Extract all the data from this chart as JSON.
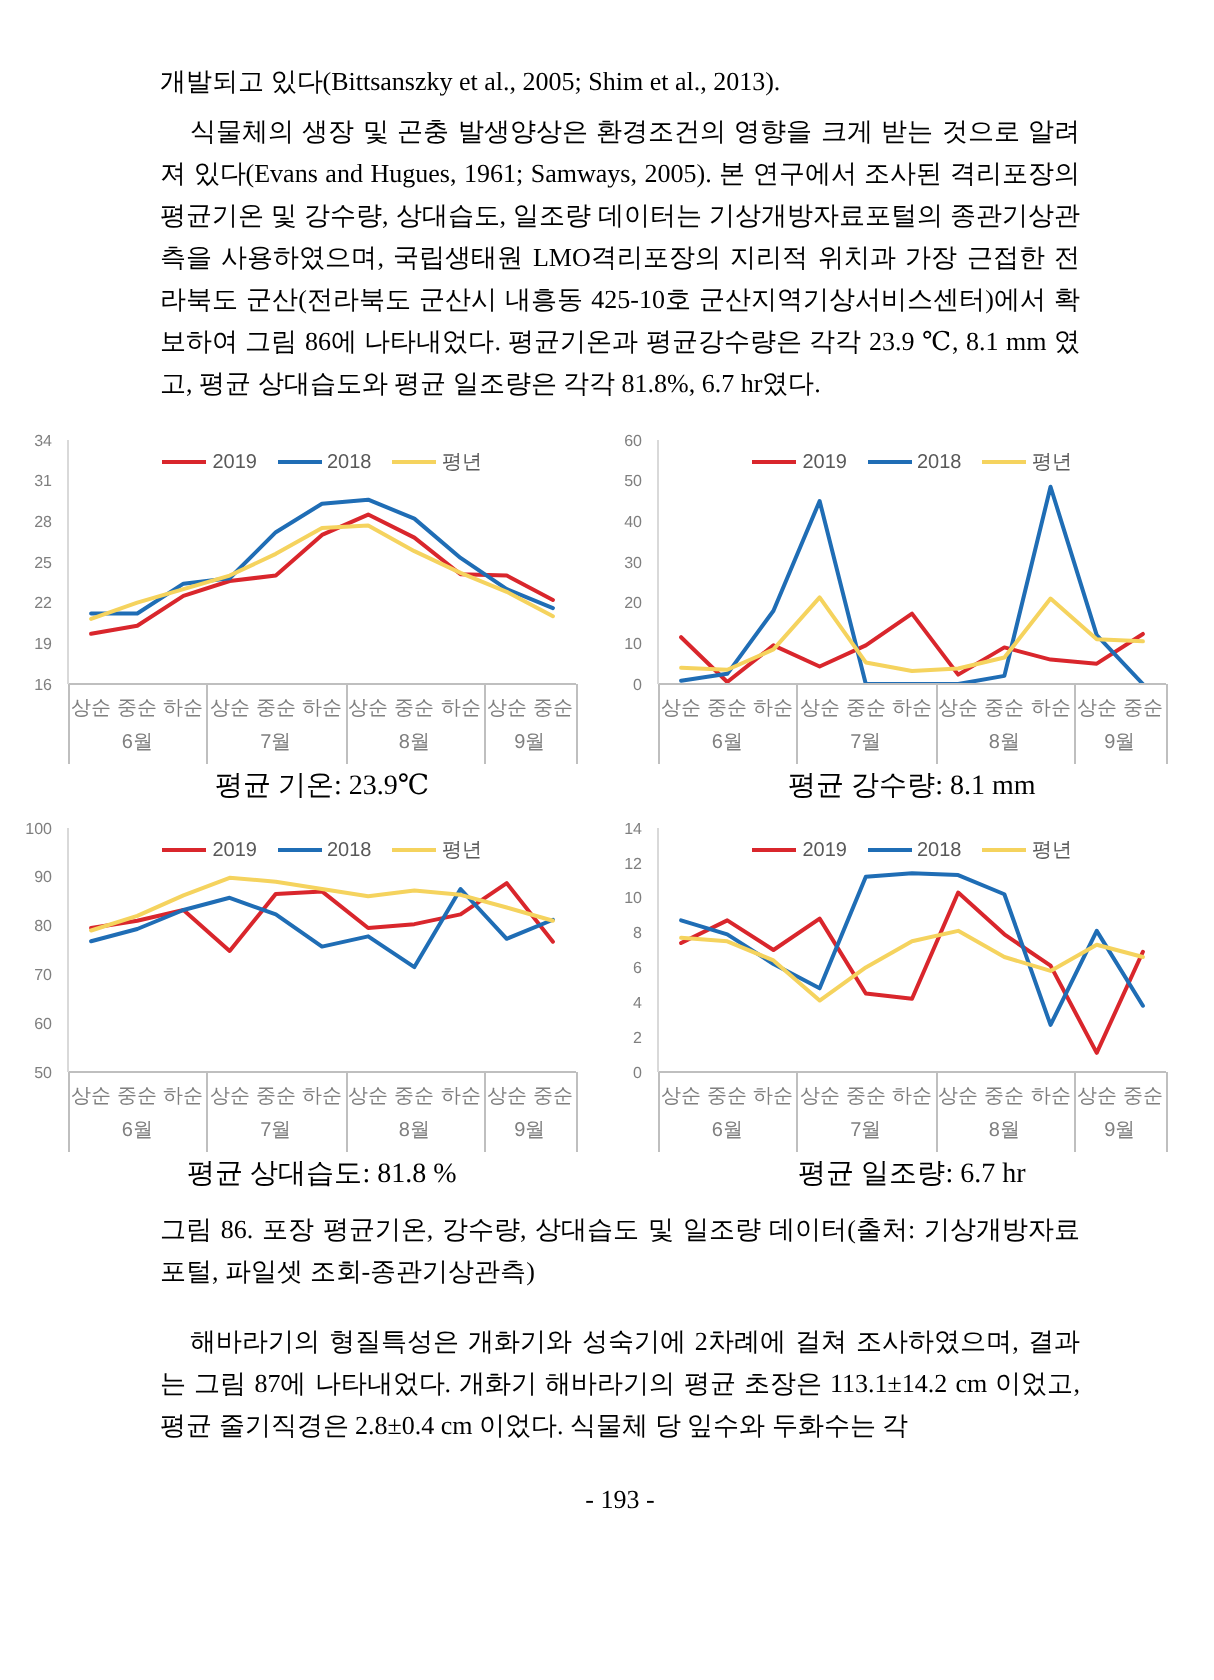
{
  "chart_data": [
    {
      "type": "line",
      "xlabel": "평균 기온: 23.9℃",
      "categories": [
        "상순",
        "중순",
        "하순",
        "상순",
        "중순",
        "하순",
        "상순",
        "중순",
        "하순",
        "상순",
        "중순"
      ],
      "ylim": [
        16,
        34
      ],
      "yticks": [
        16,
        19,
        22,
        25,
        28,
        31,
        34
      ],
      "legend": "top",
      "series": [
        {
          "name": "2019",
          "color": "#d9262c",
          "values": [
            19.7,
            20.3,
            22.5,
            23.6,
            24.0,
            27.0,
            28.5,
            26.8,
            24.1,
            24.0,
            22.2
          ]
        },
        {
          "name": "2018",
          "color": "#1f6db5",
          "values": [
            21.2,
            21.2,
            23.4,
            23.8,
            27.2,
            29.3,
            29.6,
            28.2,
            25.3,
            23.0,
            21.6
          ]
        },
        {
          "name": "평년",
          "color": "#f5d35e",
          "values": [
            20.8,
            22.0,
            23.0,
            24.0,
            25.6,
            27.5,
            27.7,
            25.8,
            24.2,
            22.8,
            21.0
          ]
        }
      ],
      "annotations": [
        "6월",
        "7월",
        "8월",
        "9월",
        "개발되고 있다(Bittsanszky et al., 2005; Shim et al., 2013).",
        "식물체의 생장 및 곤충 발생양상은 환경조건의 영향을 크게 받는 것으로 알려져 있다(Evans and Hugues, 1961; Samways, 2005). 본 연구에서 조사된 격리포장의 평균기온 및 강수량, 상대습도, 일조량 데이터는 기상개방자료포털의 종관기상관측을 사용하였으며, 국립생태원 LMO격리포장의 지리적 위치과 가장 근접한 전라북도 군산(전라북도 군산시 내흥동 425-10호 군산지역기상서비스센터)에서 확보하여 그림 86에 나타내었다. 평균기온과 평균강수량은 각각 23.9 ℃, 8.1 mm 였고, 평균 상대습도와 평균 일조량은 각각 81.8%, 6.7 hr였다."
      ]
    },
    {
      "type": "line",
      "xlabel": "평균 강수량: 8.1 mm",
      "categories": [
        "상순",
        "중순",
        "하순",
        "상순",
        "중순",
        "하순",
        "상순",
        "중순",
        "하순",
        "상순",
        "중순"
      ],
      "ylim": [
        0,
        60
      ],
      "yticks": [
        0,
        10,
        20,
        30,
        40,
        50,
        60
      ],
      "legend": "top",
      "series": [
        {
          "name": "2019",
          "color": "#d9262c",
          "values": [
            11.5,
            0.5,
            9.5,
            4.3,
            9.5,
            17.3,
            2.3,
            9.0,
            6.0,
            5.0,
            12.3
          ]
        },
        {
          "name": "2018",
          "color": "#1f6db5",
          "values": [
            0.8,
            2.5,
            18,
            45,
            0,
            0,
            0,
            2,
            48.5,
            12,
            0
          ]
        },
        {
          "name": "평년",
          "color": "#f5d35e",
          "values": [
            4,
            3.5,
            8.5,
            21.3,
            5.3,
            3.2,
            3.8,
            6.5,
            21,
            11,
            10.5
          ]
        }
      ],
      "annotations": [
        "6월",
        "7월",
        "8월",
        "9월"
      ]
    },
    {
      "type": "line",
      "xlabel": "평균 상대습도: 81.8 %",
      "categories": [
        "상순",
        "중순",
        "하순",
        "상순",
        "중순",
        "하순",
        "상순",
        "중순",
        "하순",
        "상순",
        "중순"
      ],
      "ylim": [
        50,
        100
      ],
      "yticks": [
        50,
        60,
        70,
        80,
        90,
        100
      ],
      "legend": "top",
      "series": [
        {
          "name": "2019",
          "color": "#d9262c",
          "values": [
            79.5,
            81,
            83.2,
            74.8,
            86.5,
            87,
            79.5,
            80.3,
            82.3,
            88.7,
            76.7
          ]
        },
        {
          "name": "2018",
          "color": "#1f6db5",
          "values": [
            76.8,
            79.3,
            83.2,
            85.7,
            82.3,
            75.7,
            77.8,
            71.5,
            87.5,
            77.3,
            81.2
          ]
        },
        {
          "name": "평년",
          "color": "#f5d35e",
          "values": [
            79,
            82,
            86.2,
            89.8,
            89,
            87.5,
            86,
            87.2,
            86.3,
            83.7,
            81
          ]
        }
      ],
      "annotations": [
        "6월",
        "7월",
        "8월",
        "9월"
      ]
    },
    {
      "type": "line",
      "xlabel": "평균 일조량: 6.7 hr",
      "categories": [
        "상순",
        "중순",
        "하순",
        "상순",
        "중순",
        "하순",
        "상순",
        "중순",
        "하순",
        "상순",
        "중순"
      ],
      "ylim": [
        0,
        14
      ],
      "yticks": [
        0,
        2,
        4,
        6,
        8,
        10,
        12,
        14
      ],
      "legend": "top",
      "series": [
        {
          "name": "2019",
          "color": "#d9262c",
          "values": [
            7.4,
            8.7,
            7.0,
            8.8,
            4.5,
            4.2,
            10.3,
            7.9,
            6.1,
            1.1,
            6.9
          ]
        },
        {
          "name": "2018",
          "color": "#1f6db5",
          "values": [
            8.7,
            7.9,
            6.2,
            4.8,
            11.2,
            11.4,
            11.3,
            10.2,
            2.7,
            8.1,
            3.8
          ]
        },
        {
          "name": "평년",
          "color": "#f5d35e",
          "values": [
            7.7,
            7.5,
            6.4,
            4.1,
            6.0,
            7.5,
            8.1,
            6.6,
            5.8,
            7.3,
            6.6
          ]
        }
      ],
      "annotations": [
        "6월",
        "7월",
        "8월",
        "9월",
        "그림 86. 포장 평균기온, 강수량, 상대습도 및 일조량 데이터(출처: 기상개방자료포털, 파일셋 조회-종관기상관측)",
        "해바라기의 형질특성은 개화기와 성숙기에 2차례에 걸쳐 조사하였으며, 결과는 그림 87에 나타내었다. 개화기 해바라기의 평균 초장은 113.1±14.2 cm 이었고, 평균 줄기직경은 2.8±0.4 cm 이었다. 식물체 당 잎수와 두화수는 각",
        "- 193 -"
      ]
    }
  ]
}
